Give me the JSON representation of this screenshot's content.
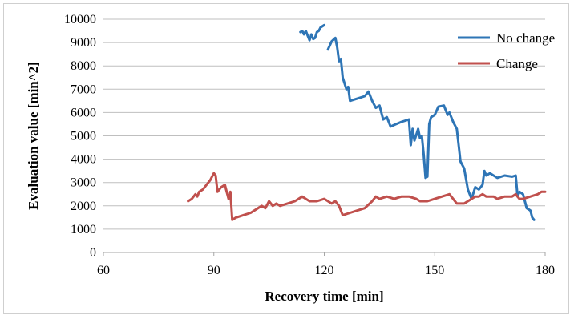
{
  "chart_data": {
    "type": "line",
    "title": "",
    "xlabel": "Recovery time [min]",
    "ylabel": "Evaluation value [min^2]",
    "xlim": [
      60,
      180
    ],
    "ylim": [
      0,
      10000
    ],
    "xticks": [
      "60",
      "90",
      "120",
      "150",
      "180"
    ],
    "yticks": [
      "0",
      "1000",
      "2000",
      "3000",
      "4000",
      "5000",
      "6000",
      "7000",
      "8000",
      "9000",
      "10000"
    ],
    "grid": true,
    "legend": "top-right",
    "series": [
      {
        "name": "No change",
        "color": "#2e75b6",
        "segments": [
          [
            [
              113.5,
              9450
            ],
            [
              114,
              9500
            ],
            [
              114.5,
              9350
            ],
            [
              115,
              9500
            ],
            [
              115.5,
              9300
            ],
            [
              116,
              9100
            ],
            [
              116.5,
              9350
            ],
            [
              117,
              9150
            ],
            [
              117.5,
              9200
            ],
            [
              118,
              9450
            ],
            [
              118.5,
              9500
            ],
            [
              119,
              9650
            ],
            [
              120,
              9750
            ]
          ],
          [
            [
              121,
              8700
            ],
            [
              122,
              9050
            ],
            [
              123,
              9200
            ],
            [
              123.5,
              8800
            ],
            [
              124,
              8200
            ],
            [
              124.5,
              8300
            ],
            [
              125,
              7500
            ],
            [
              126,
              7000
            ],
            [
              126.5,
              7100
            ],
            [
              127,
              6500
            ],
            [
              129,
              6600
            ],
            [
              131,
              6700
            ],
            [
              132,
              6900
            ],
            [
              133,
              6500
            ],
            [
              134,
              6200
            ],
            [
              135,
              6300
            ],
            [
              136,
              5700
            ],
            [
              137,
              5800
            ],
            [
              138,
              5400
            ],
            [
              139.5,
              5500
            ],
            [
              141,
              5600
            ],
            [
              143,
              5700
            ],
            [
              143.5,
              4600
            ],
            [
              144,
              5300
            ],
            [
              144.5,
              4800
            ],
            [
              145.5,
              5300
            ],
            [
              146,
              4900
            ],
            [
              146.5,
              5000
            ],
            [
              147,
              4200
            ],
            [
              147.5,
              3200
            ],
            [
              148,
              3250
            ],
            [
              148.5,
              5500
            ],
            [
              149,
              5800
            ],
            [
              150,
              5900
            ],
            [
              151,
              6250
            ],
            [
              152.5,
              6300
            ],
            [
              153.5,
              5900
            ],
            [
              154,
              6000
            ],
            [
              155,
              5600
            ],
            [
              156,
              5300
            ],
            [
              157,
              3900
            ],
            [
              158,
              3600
            ],
            [
              159,
              2700
            ],
            [
              160,
              2300
            ],
            [
              161,
              2800
            ],
            [
              162,
              2700
            ],
            [
              163,
              2900
            ],
            [
              163.5,
              3500
            ],
            [
              164,
              3300
            ],
            [
              165,
              3400
            ],
            [
              167,
              3200
            ],
            [
              169,
              3300
            ],
            [
              171,
              3250
            ],
            [
              172,
              3300
            ],
            [
              172.5,
              2400
            ],
            [
              173,
              2600
            ],
            [
              174,
              2500
            ],
            [
              175,
              1900
            ],
            [
              176,
              1800
            ],
            [
              176.5,
              1500
            ],
            [
              177,
              1400
            ]
          ]
        ]
      },
      {
        "name": "Change",
        "color": "#c0504d",
        "segments": [
          [
            [
              83,
              2200
            ],
            [
              84,
              2300
            ],
            [
              85,
              2500
            ],
            [
              85.5,
              2400
            ],
            [
              86,
              2600
            ],
            [
              87,
              2700
            ],
            [
              88,
              2900
            ],
            [
              89,
              3100
            ],
            [
              90,
              3400
            ],
            [
              90.5,
              3300
            ],
            [
              91,
              2600
            ],
            [
              92,
              2800
            ],
            [
              93,
              2900
            ],
            [
              94,
              2300
            ],
            [
              94.5,
              2600
            ],
            [
              95,
              1400
            ],
            [
              96,
              1500
            ],
            [
              98,
              1600
            ],
            [
              100,
              1700
            ],
            [
              102,
              1900
            ],
            [
              103,
              2000
            ],
            [
              104,
              1900
            ],
            [
              105,
              2200
            ],
            [
              106,
              2000
            ],
            [
              107,
              2100
            ],
            [
              108,
              2000
            ],
            [
              110,
              2100
            ],
            [
              112,
              2200
            ],
            [
              114,
              2400
            ],
            [
              115,
              2300
            ],
            [
              116,
              2200
            ],
            [
              118,
              2200
            ],
            [
              120,
              2300
            ],
            [
              121,
              2200
            ],
            [
              122,
              2100
            ],
            [
              123,
              2200
            ],
            [
              124,
              2000
            ],
            [
              125,
              1600
            ],
            [
              127,
              1700
            ],
            [
              129,
              1800
            ],
            [
              131,
              1900
            ],
            [
              133,
              2200
            ],
            [
              134,
              2400
            ],
            [
              135,
              2300
            ],
            [
              137,
              2400
            ],
            [
              139,
              2300
            ],
            [
              141,
              2400
            ],
            [
              143,
              2400
            ],
            [
              145,
              2300
            ],
            [
              146,
              2200
            ],
            [
              148,
              2200
            ],
            [
              150,
              2300
            ],
            [
              152,
              2400
            ],
            [
              154,
              2500
            ],
            [
              155,
              2300
            ],
            [
              156,
              2100
            ],
            [
              158,
              2100
            ],
            [
              160,
              2300
            ],
            [
              161,
              2400
            ],
            [
              162,
              2400
            ],
            [
              163,
              2500
            ],
            [
              164,
              2400
            ],
            [
              166,
              2400
            ],
            [
              167,
              2300
            ],
            [
              169,
              2400
            ],
            [
              171,
              2400
            ],
            [
              172,
              2500
            ],
            [
              173,
              2300
            ],
            [
              174,
              2300
            ],
            [
              176,
              2400
            ],
            [
              178,
              2500
            ],
            [
              179,
              2600
            ],
            [
              180,
              2600
            ]
          ]
        ]
      }
    ]
  }
}
